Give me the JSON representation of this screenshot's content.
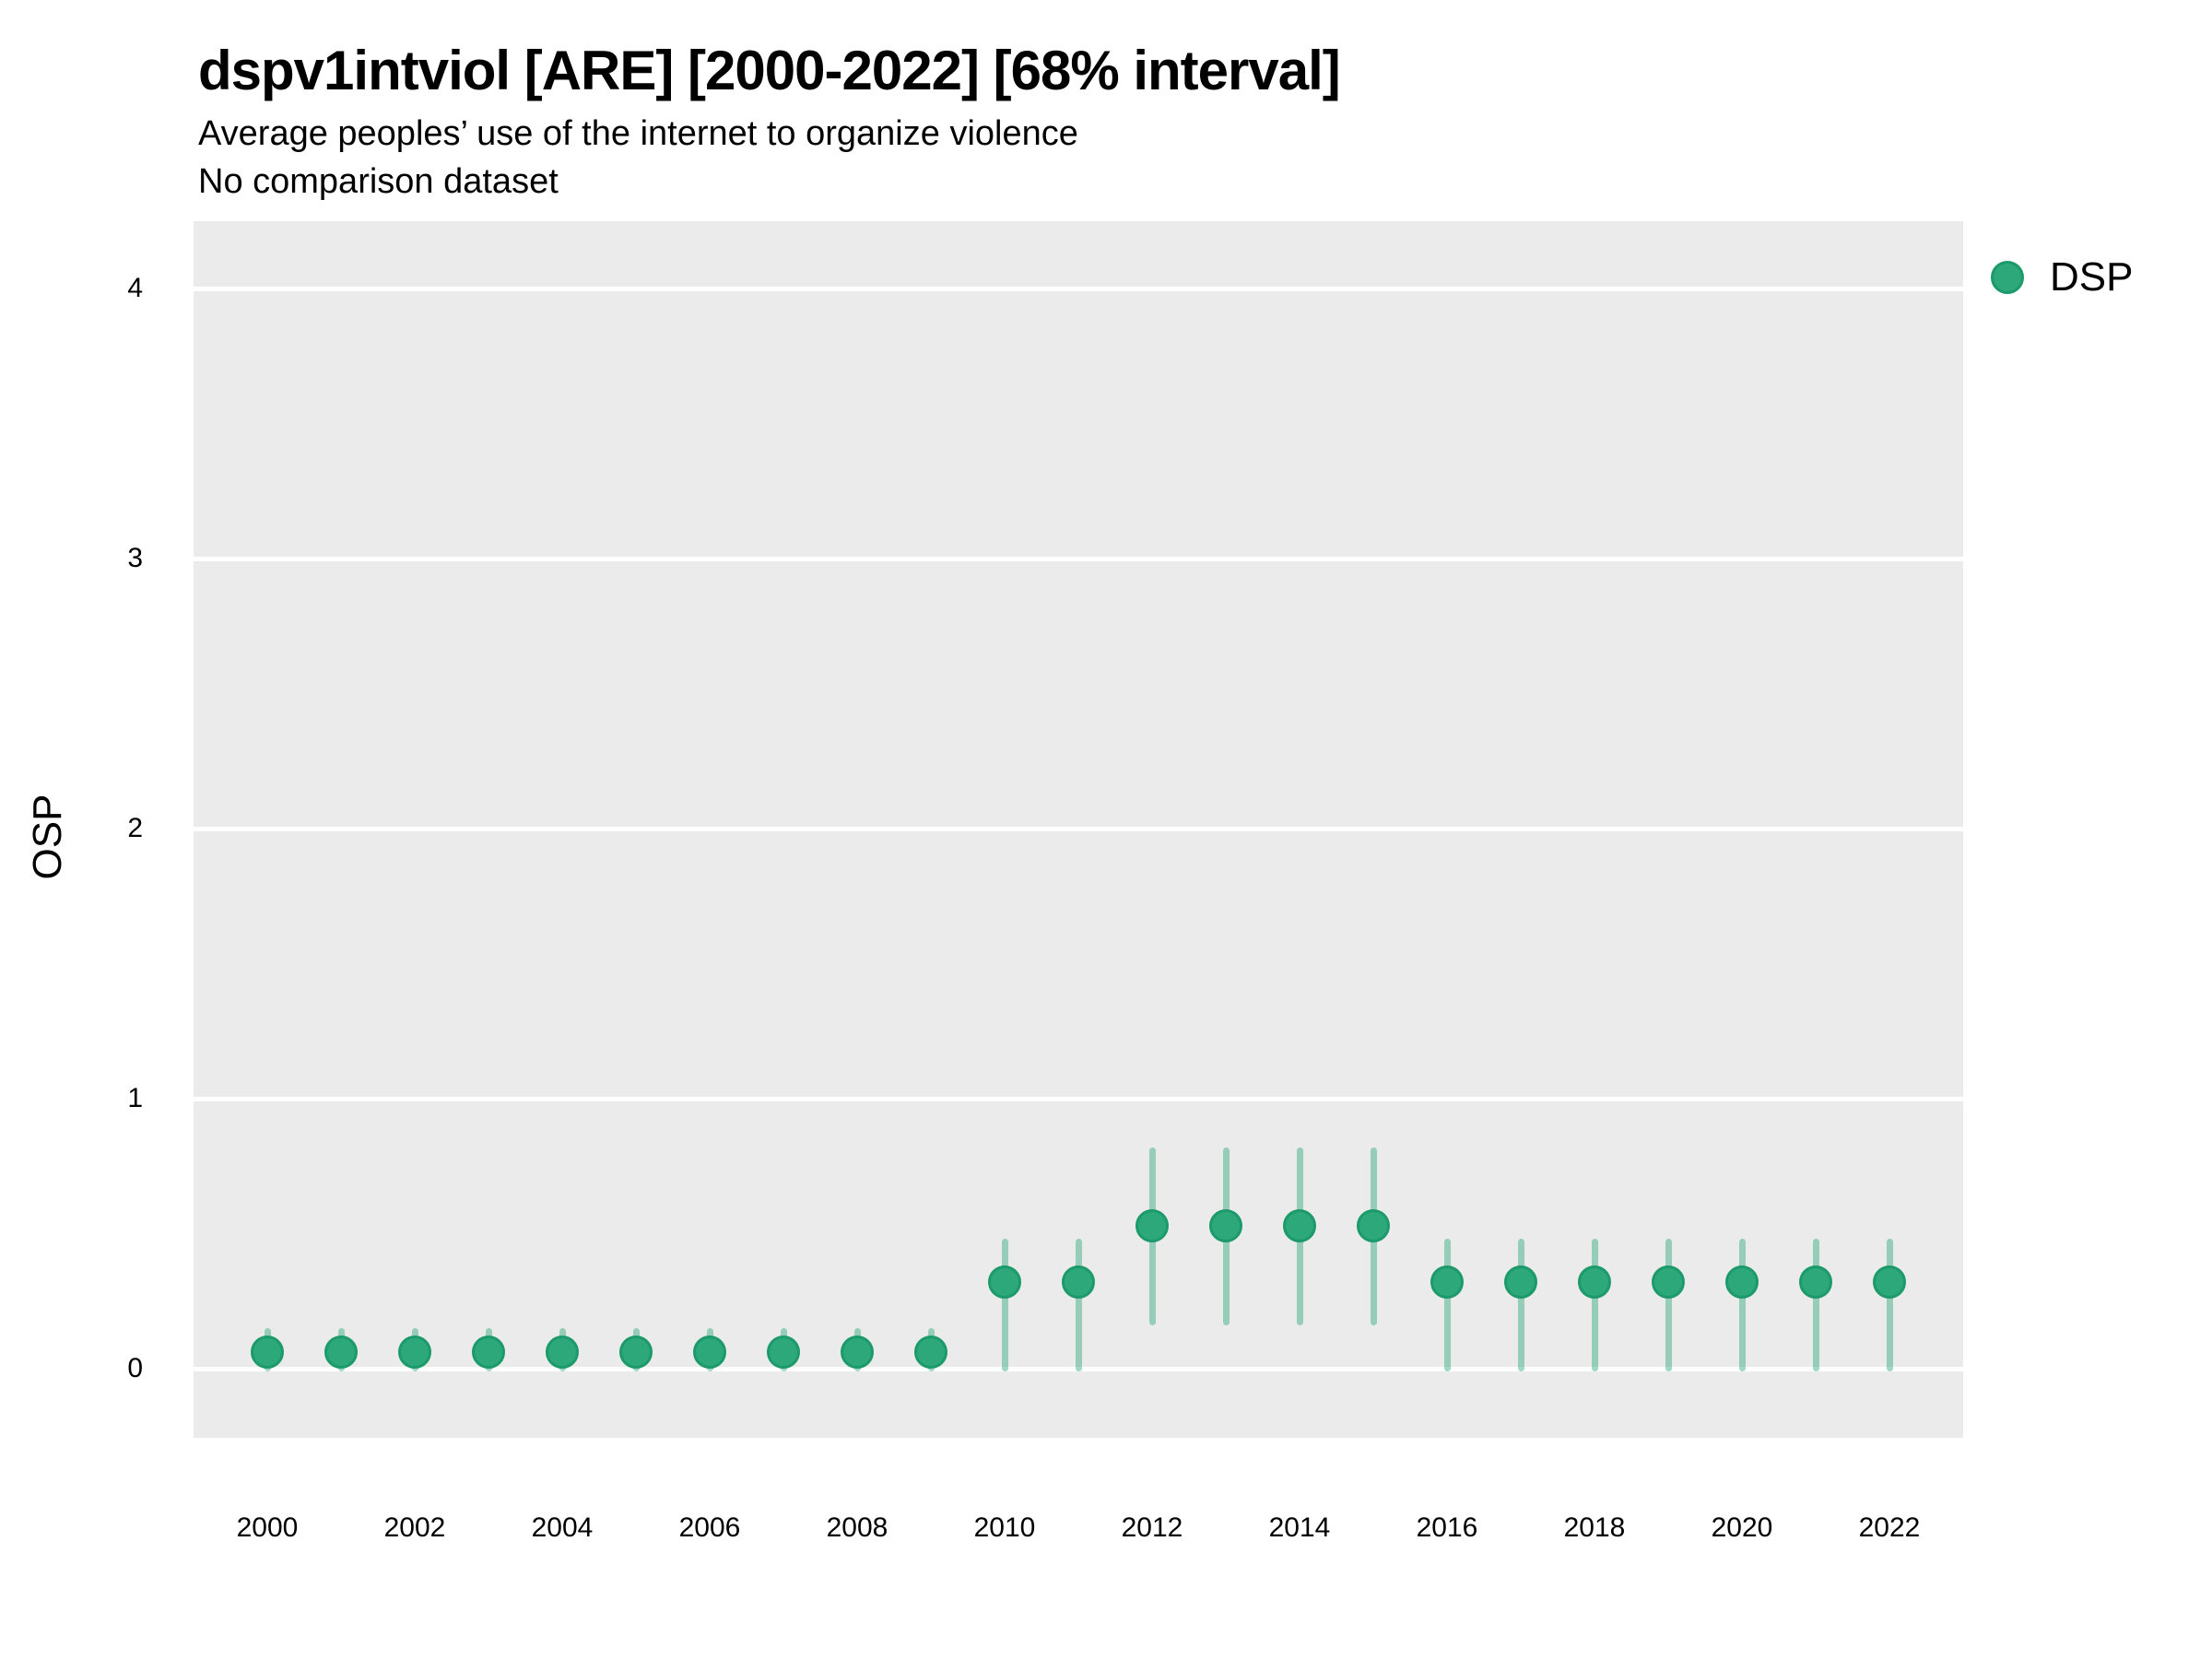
{
  "figure": {
    "title": "dspv1intviol [ARE] [2000-2022] [68% interval]",
    "subtitle": "Average peoples’ use of the internet to organize violence",
    "note": "No comparison dataset"
  },
  "axes": {
    "y_title": "OSP",
    "y_ticks": [
      0,
      1,
      2,
      3,
      4
    ],
    "x_ticks": [
      2000,
      2002,
      2004,
      2006,
      2008,
      2010,
      2012,
      2014,
      2016,
      2018,
      2020,
      2022
    ]
  },
  "legend": {
    "label": "DSP"
  },
  "colors": {
    "panel_background": "#EBEBEB",
    "gridline": "#FFFFFF",
    "point_fill": "#2CA87A",
    "point_stroke": "#1D9A6C",
    "errorbar": "rgba(44,168,122,0.45)",
    "text": "#000000"
  },
  "chart_data": {
    "type": "scatter",
    "title": "dspv1intviol [ARE] [2000-2022] [68% interval]",
    "subtitle": "Average peoples’ use of the internet to organize violence",
    "note": "No comparison dataset",
    "xlabel": "",
    "ylabel": "OSP",
    "interval": "68%",
    "xlim": [
      1999,
      2023
    ],
    "ylim": [
      -0.26,
      4.25
    ],
    "grid": "major-horizontal-white-on-grey",
    "legend_position": "right-top",
    "series": [
      {
        "name": "DSP",
        "points": [
          {
            "year": 2000,
            "value": 0.06,
            "low": -0.01,
            "high": 0.15
          },
          {
            "year": 2001,
            "value": 0.06,
            "low": -0.01,
            "high": 0.15
          },
          {
            "year": 2002,
            "value": 0.06,
            "low": -0.01,
            "high": 0.15
          },
          {
            "year": 2003,
            "value": 0.06,
            "low": -0.01,
            "high": 0.15
          },
          {
            "year": 2004,
            "value": 0.06,
            "low": -0.01,
            "high": 0.15
          },
          {
            "year": 2005,
            "value": 0.06,
            "low": -0.01,
            "high": 0.15
          },
          {
            "year": 2006,
            "value": 0.06,
            "low": -0.01,
            "high": 0.15
          },
          {
            "year": 2007,
            "value": 0.06,
            "low": -0.01,
            "high": 0.15
          },
          {
            "year": 2008,
            "value": 0.06,
            "low": -0.01,
            "high": 0.15
          },
          {
            "year": 2009,
            "value": 0.06,
            "low": -0.01,
            "high": 0.15
          },
          {
            "year": 2010,
            "value": 0.32,
            "low": -0.01,
            "high": 0.48
          },
          {
            "year": 2011,
            "value": 0.32,
            "low": -0.01,
            "high": 0.48
          },
          {
            "year": 2012,
            "value": 0.53,
            "low": 0.16,
            "high": 0.82
          },
          {
            "year": 2013,
            "value": 0.53,
            "low": 0.16,
            "high": 0.82
          },
          {
            "year": 2014,
            "value": 0.53,
            "low": 0.16,
            "high": 0.82
          },
          {
            "year": 2015,
            "value": 0.53,
            "low": 0.16,
            "high": 0.82
          },
          {
            "year": 2016,
            "value": 0.32,
            "low": -0.01,
            "high": 0.48
          },
          {
            "year": 2017,
            "value": 0.32,
            "low": -0.01,
            "high": 0.48
          },
          {
            "year": 2018,
            "value": 0.32,
            "low": -0.01,
            "high": 0.48
          },
          {
            "year": 2019,
            "value": 0.32,
            "low": -0.01,
            "high": 0.48
          },
          {
            "year": 2020,
            "value": 0.32,
            "low": -0.01,
            "high": 0.48
          },
          {
            "year": 2021,
            "value": 0.32,
            "low": -0.01,
            "high": 0.48
          },
          {
            "year": 2022,
            "value": 0.32,
            "low": -0.01,
            "high": 0.48
          }
        ]
      }
    ]
  }
}
